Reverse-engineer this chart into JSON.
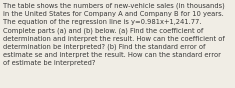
{
  "text": "The table shows the numbers of new-vehicle sales (in thousands)\nin the United States for Company A and Company B for 10 years.\nThe equation of the regression line is y=0.981x+1,241.77.\nComplete parts (a) and (b) below. (a) Find the coefficient of\ndetermination and interpret the result. How can the coefficient of\ndetermination be interpreted? (b) Find the standard error of\nestimate se and interpret the result. How can the standard error\nof estimate be interpreted?",
  "font_size": 4.85,
  "text_color": "#3a3a3a",
  "background_color": "#f0ede5",
  "font_family": "DejaVu Sans"
}
